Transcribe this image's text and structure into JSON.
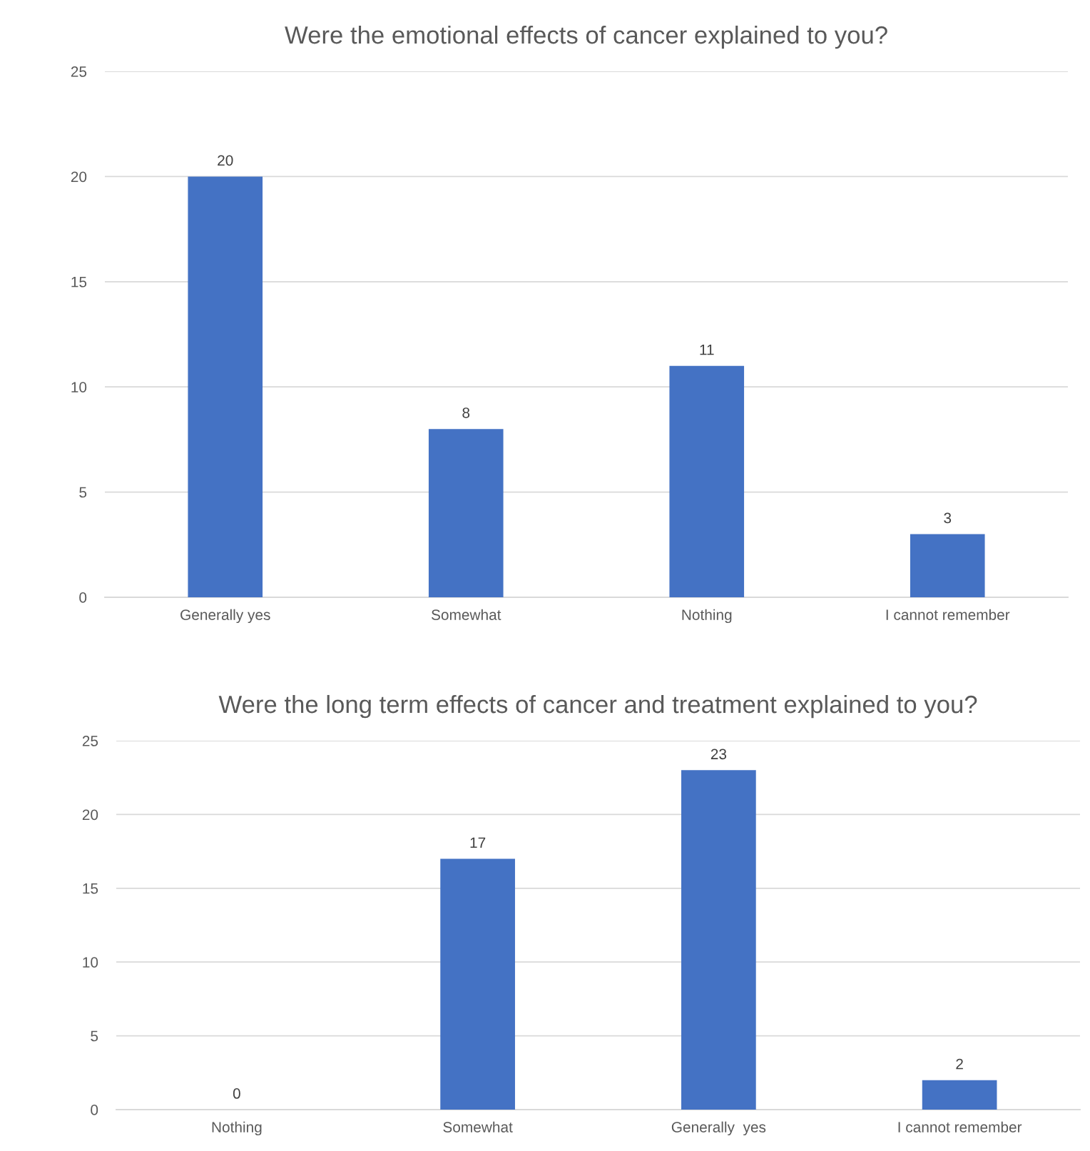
{
  "chart_data": [
    {
      "type": "bar",
      "title": "Were the emotional effects of cancer explained to you?",
      "categories": [
        "Generally yes",
        "Somewhat",
        "Nothing",
        "I cannot remember"
      ],
      "values": [
        20,
        8,
        11,
        3
      ],
      "color": "#4472c4",
      "ylim": [
        0,
        25
      ],
      "yticks": [
        0,
        5,
        10,
        15,
        20,
        25
      ],
      "grid": "y",
      "data_labels": true,
      "legend": false
    },
    {
      "type": "bar",
      "title": "Were the long term effects of cancer and treatment explained to you?",
      "categories": [
        "Nothing",
        "Somewhat",
        "Generally  yes",
        "I cannot remember"
      ],
      "values": [
        0,
        17,
        23,
        2
      ],
      "color": "#4472c4",
      "ylim": [
        0,
        25
      ],
      "yticks": [
        0,
        5,
        10,
        15,
        20,
        25
      ],
      "grid": "y",
      "data_labels": true,
      "legend": false
    }
  ]
}
